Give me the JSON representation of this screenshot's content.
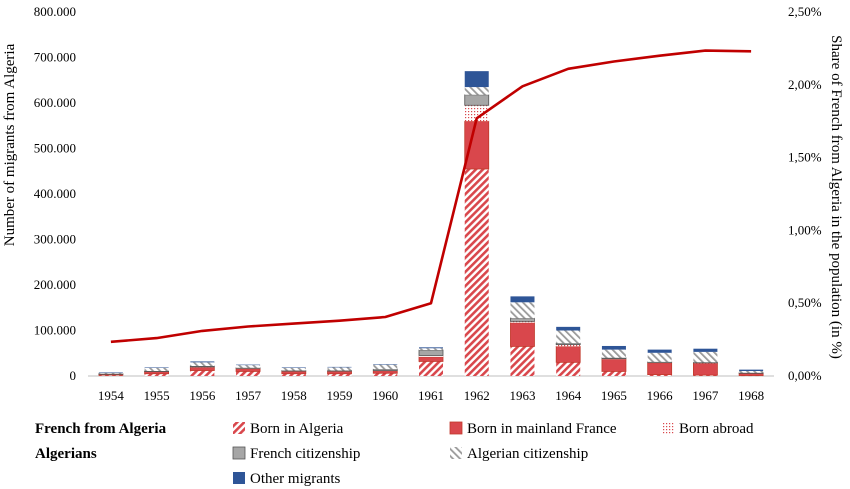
{
  "colors": {
    "red": "#d9474c",
    "red_dark": "#c0392b",
    "gray": "#a6a6a6",
    "blue": "#2e5597",
    "line": "#c00000",
    "axis": "#bfbfbf"
  },
  "chart_data": {
    "type": "bar",
    "subtype": "stacked bar with line on secondary axis",
    "categories": [
      "1954",
      "1955",
      "1956",
      "1957",
      "1958",
      "1959",
      "1960",
      "1961",
      "1962",
      "1963",
      "1964",
      "1965",
      "1966",
      "1967",
      "1968"
    ],
    "ylabel": "Number of migrants from Algeria",
    "y2label": "Share of French from Algeria in the population (in %)",
    "ylim": [
      0,
      800000
    ],
    "y2lim": [
      0,
      2.5
    ],
    "y_ticks": [
      "0",
      "100.000",
      "200.000",
      "300.000",
      "400.000",
      "500.000",
      "600.000",
      "700.000",
      "800.000"
    ],
    "y2_ticks": [
      "0,00%",
      "0,50%",
      "1,00%",
      "1,50%",
      "2,00%",
      "2,50%"
    ],
    "grid": false,
    "series": [
      {
        "name": "Born in Algeria",
        "group": "French from Algeria",
        "pattern": "diagonal-red",
        "values": [
          2000,
          5000,
          12000,
          10000,
          5000,
          5000,
          6000,
          32000,
          455000,
          65000,
          30000,
          10000,
          3000,
          2000,
          1000
        ]
      },
      {
        "name": "Born in mainland France",
        "group": "French from Algeria",
        "pattern": "solid-red",
        "values": [
          2000,
          5000,
          7000,
          6000,
          5000,
          5000,
          5000,
          10000,
          105000,
          52000,
          35000,
          27000,
          26000,
          26000,
          5000
        ]
      },
      {
        "name": "Born abroad",
        "group": "French from Algeria",
        "pattern": "dots-red",
        "values": [
          0,
          0,
          1000,
          1000,
          1000,
          1000,
          1000,
          3000,
          35000,
          3000,
          4000,
          1000,
          1000,
          1000,
          0
        ]
      },
      {
        "name": "French citizenship",
        "group": "Algerians",
        "pattern": "solid-gray",
        "values": [
          1000,
          1000,
          2000,
          1000,
          1000,
          1000,
          3000,
          12000,
          23000,
          7000,
          3000,
          2000,
          1000,
          1000,
          1000
        ]
      },
      {
        "name": "Algerian citizenship",
        "group": "Algerians",
        "pattern": "diagonal-gray",
        "values": [
          2000,
          7000,
          8000,
          6000,
          6000,
          7000,
          10000,
          4000,
          17000,
          35000,
          28000,
          18000,
          20000,
          23000,
          4000
        ]
      },
      {
        "name": "Other migrants",
        "group": "Other",
        "pattern": "solid-blue",
        "values": [
          1000,
          1000,
          2000,
          1000,
          1000,
          1000,
          1000,
          2000,
          35000,
          13000,
          8000,
          8000,
          7000,
          7000,
          3000
        ]
      }
    ],
    "line": {
      "name": "Share of French from Algeria in the population",
      "axis": "secondary",
      "values": [
        0.235,
        0.26,
        0.31,
        0.34,
        0.36,
        0.38,
        0.405,
        0.5,
        1.77,
        1.99,
        2.11,
        2.16,
        2.2,
        2.235,
        2.23
      ]
    }
  },
  "legend": {
    "group1_label": "French from Algeria",
    "group2_label": "Algerians",
    "items": [
      {
        "label": "Born in Algeria",
        "pattern": "diagonal-red"
      },
      {
        "label": "Born in mainland France",
        "pattern": "solid-red"
      },
      {
        "label": "Born abroad",
        "pattern": "dots-red"
      },
      {
        "label": "French citizenship",
        "pattern": "solid-gray"
      },
      {
        "label": "Algerian citizenship",
        "pattern": "diagonal-gray"
      },
      {
        "label": "Other migrants",
        "pattern": "solid-blue"
      }
    ]
  }
}
